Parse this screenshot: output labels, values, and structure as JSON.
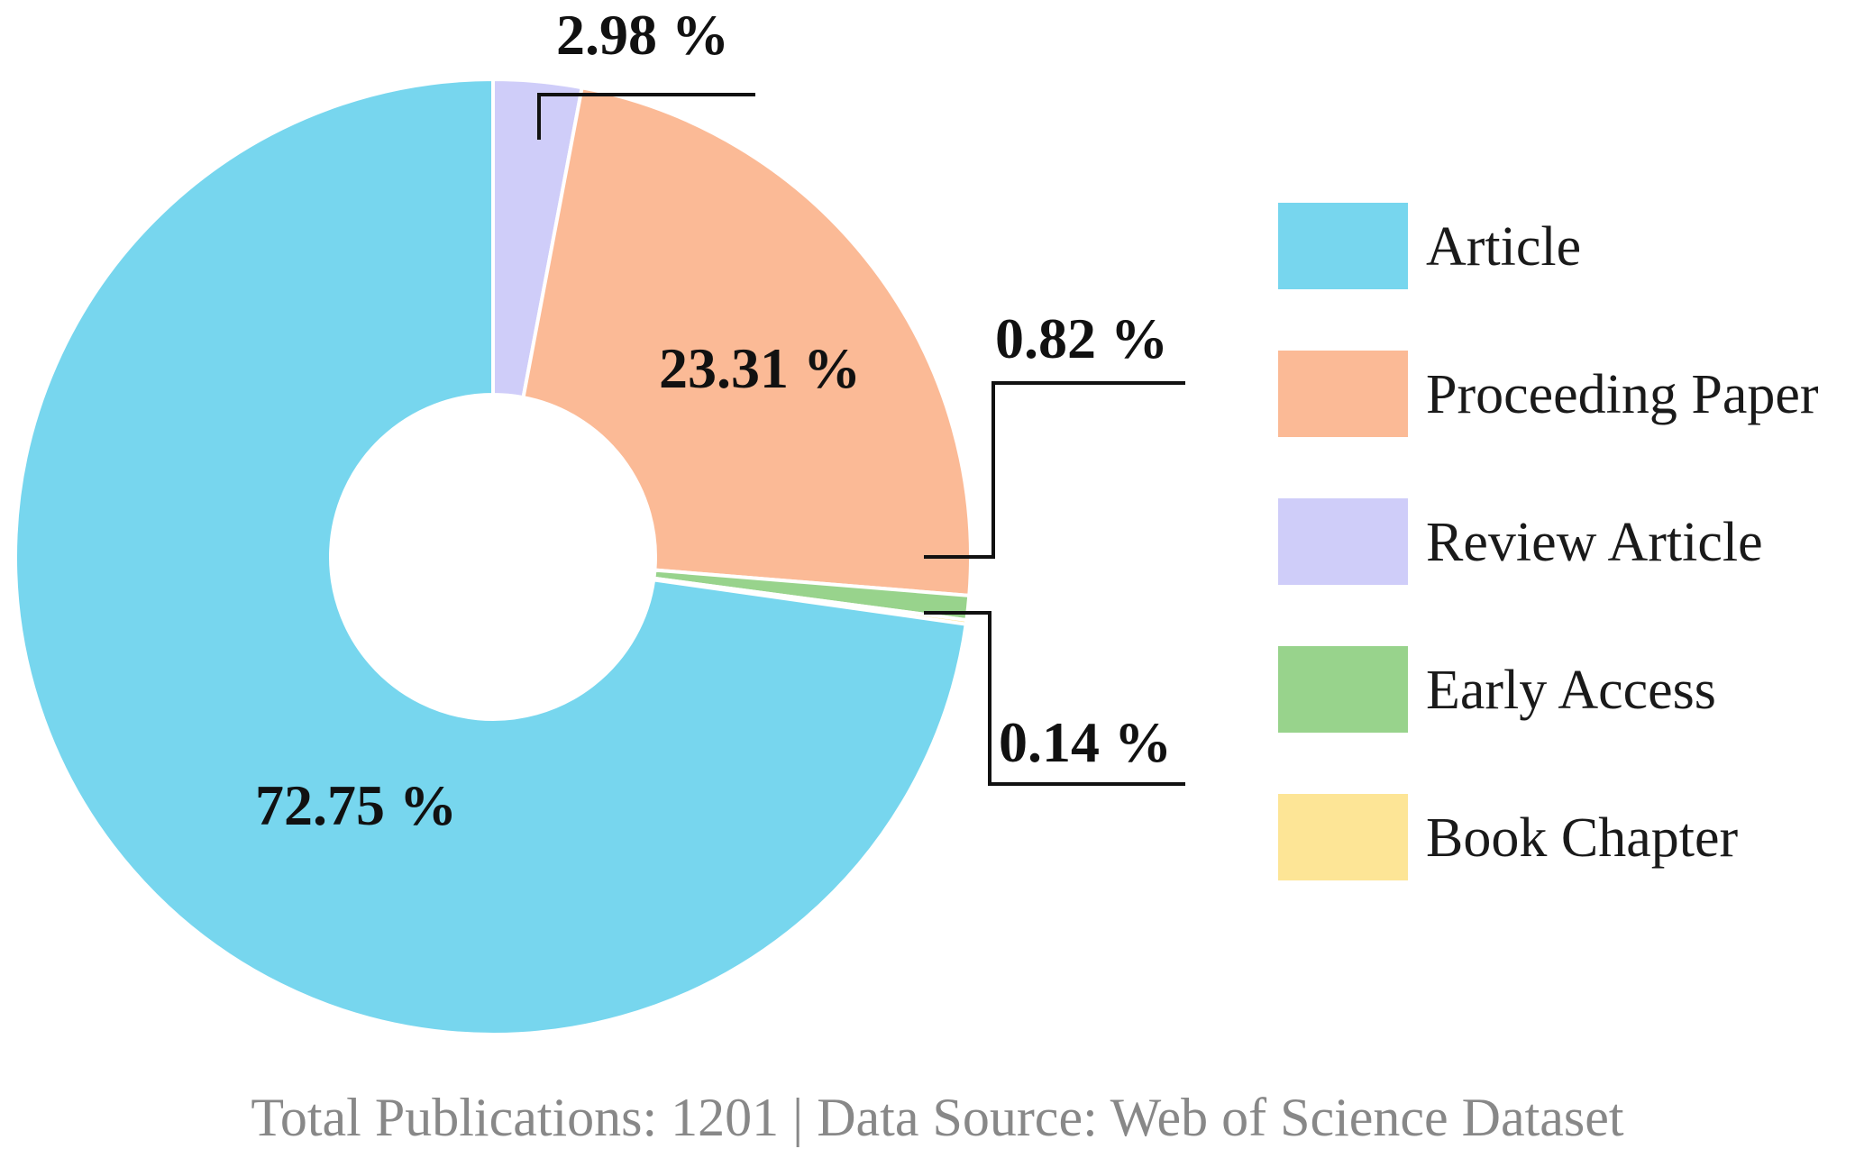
{
  "chart_data": {
    "type": "pie",
    "variant": "donut",
    "title": "",
    "legend_position": "right",
    "categories": [
      "Article",
      "Proceeding Paper",
      "Review Article",
      "Early Access",
      "Book Chapter"
    ],
    "values": [
      72.75,
      23.31,
      2.98,
      0.82,
      0.14
    ],
    "labels": [
      "72.75 %",
      "23.31 %",
      "2.98 %",
      "0.82 %",
      "0.14 %"
    ],
    "colors": [
      "#77d6ee",
      "#fbba96",
      "#cfcdf9",
      "#98d38c",
      "#fde596"
    ],
    "plot_order": [
      "Review Article",
      "Proceeding Paper",
      "Early Access",
      "Book Chapter",
      "Article"
    ]
  },
  "footer": {
    "text": "Total Publications: 1201 | Data Source: Web of Science Dataset"
  }
}
